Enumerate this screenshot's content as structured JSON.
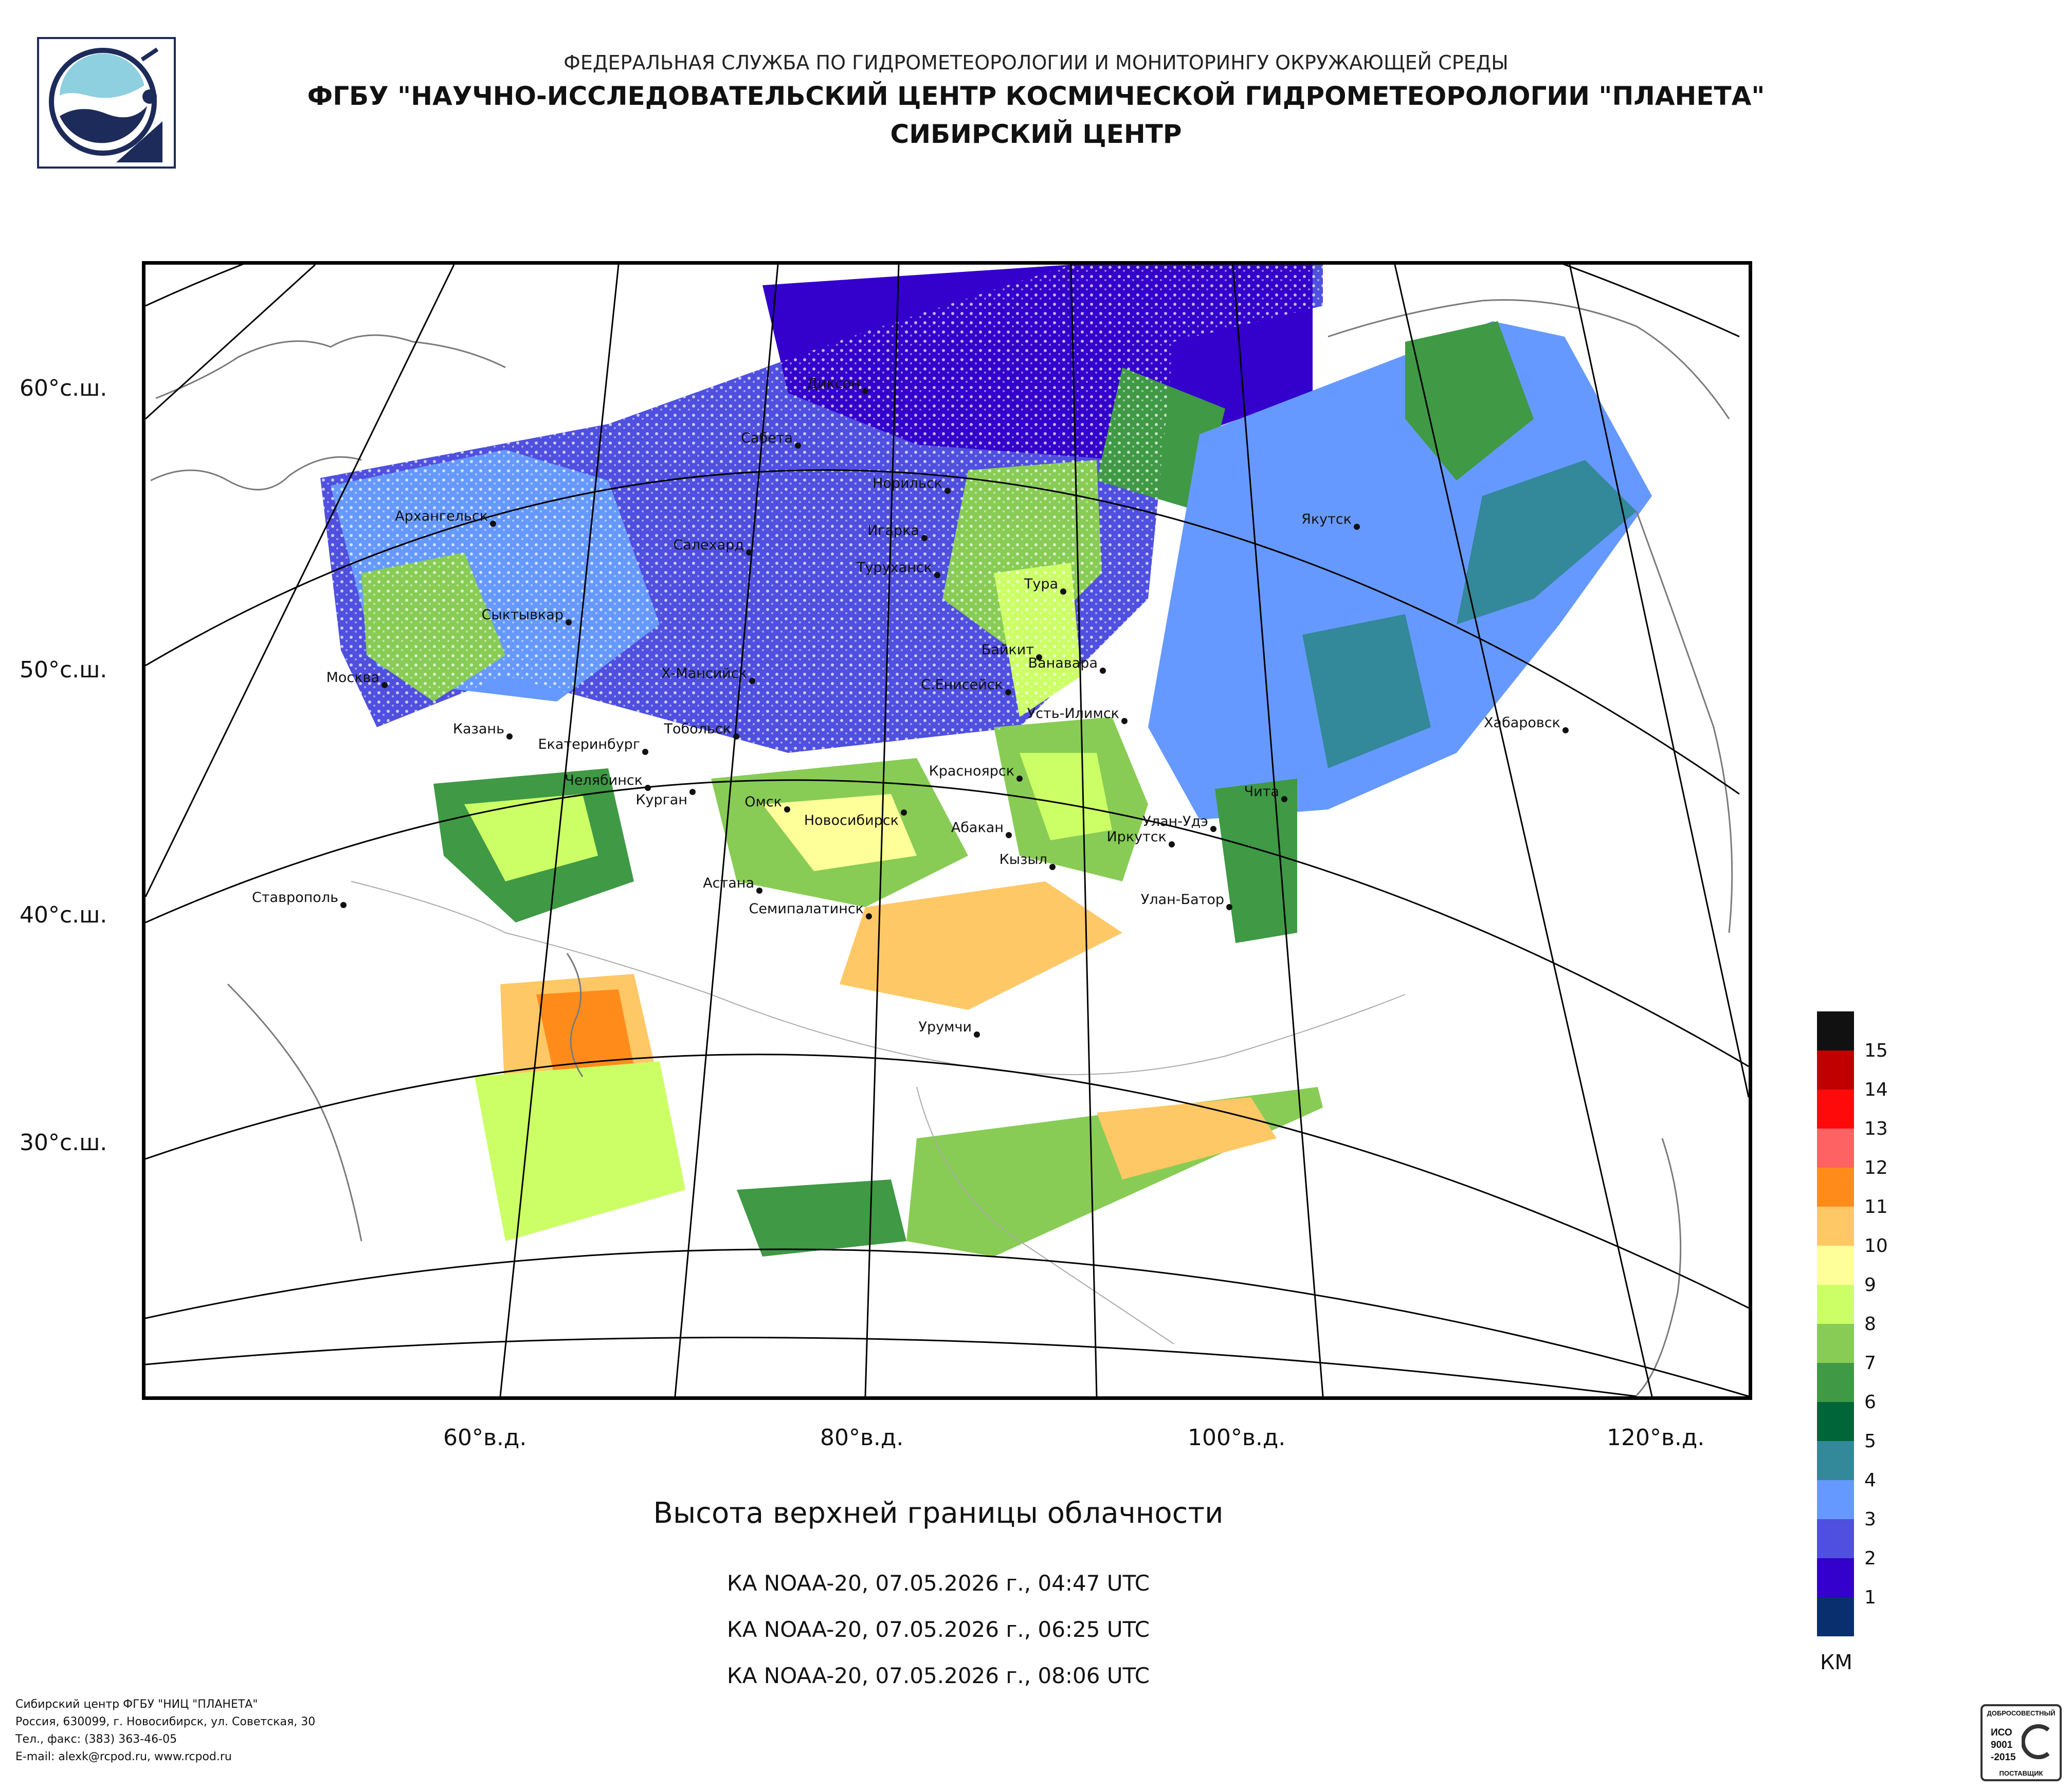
{
  "header": {
    "agency": "ФЕДЕРАЛЬНАЯ СЛУЖБА ПО ГИДРОМЕТЕОРОЛОГИИ И МОНИТОРИНГУ ОКРУЖАЮЩЕЙ СРЕДЫ",
    "center": "ФГБУ \"НАУЧНО-ИССЛЕДОВАТЕЛЬСКИЙ ЦЕНТР КОСМИЧЕСКОЙ ГИДРОМЕТЕОРОЛОГИИ \"ПЛАНЕТА\"",
    "branch": "СИБИРСКИЙ ЦЕНТР"
  },
  "map": {
    "lat_labels": [
      "60°с.ш.",
      "50°с.ш.",
      "40°с.ш.",
      "30°с.ш."
    ],
    "lon_labels": [
      "60°в.д.",
      "80°в.д.",
      "100°в.д.",
      "120°в.д."
    ],
    "cities": {
      "dikson": "Диксон",
      "sabeta": "Сабета",
      "norilsk": "Норильск",
      "arkhangelsk": "Архангельск",
      "salekhard": "Салехард",
      "igarka": "Игарка",
      "turukhansk": "Туруханск",
      "tura": "Тура",
      "yakutsk": "Якутск",
      "syktyvkar": "Сыктывкар",
      "baykit": "Байкит",
      "vanavara": "Ванавара",
      "moskva": "Москва",
      "khmansiysk": "Х-Мансийск",
      "s_eniseysk": "С.Енисейск",
      "ust_ilimsk": "Усть-Илимск",
      "khabarovsk": "Хабаровск",
      "kazan": "Казань",
      "tobolsk": "Тобольск",
      "ekaterinburg": "Екатеринбург",
      "chelyabinsk": "Челябинск",
      "kurgan": "Курган",
      "krasnoyarsk": "Красноярск",
      "chita": "Чита",
      "omsk": "Омск",
      "novosibirsk": "Новосибирск",
      "abakan": "Абакан",
      "ulan_ude": "Улан-Удэ",
      "irkutsk": "Иркутск",
      "kyzyl": "Кызыл",
      "astana": "Астана",
      "semipalatinsk": "Семипалатинск",
      "ulan_bator": "Улан-Батор",
      "stavropol": "Ставрополь",
      "urumchi": "Урумчи"
    }
  },
  "caption": {
    "title": "Высота верхней границы облачности",
    "passes": [
      "КА NOAA-20, 07.05.2026 г., 04:47 UTC",
      "КА NOAA-20, 07.05.2026 г., 06:25 UTC",
      "КА NOAA-20, 07.05.2026 г., 08:06 UTC"
    ]
  },
  "legend": {
    "unit": "КМ",
    "levels": [
      {
        "label": "15",
        "color": "#111111"
      },
      {
        "label": "14",
        "color": "#c00000"
      },
      {
        "label": "13",
        "color": "#ff0a0a"
      },
      {
        "label": "12",
        "color": "#ff6262"
      },
      {
        "label": "11",
        "color": "#ff8c1a"
      },
      {
        "label": "10",
        "color": "#ffc866"
      },
      {
        "label": "9",
        "color": "#ffff99"
      },
      {
        "label": "8",
        "color": "#ccff66"
      },
      {
        "label": "7",
        "color": "#88cc55"
      },
      {
        "label": "6",
        "color": "#3f9945"
      },
      {
        "label": "5",
        "color": "#00663a"
      },
      {
        "label": "4",
        "color": "#338899"
      },
      {
        "label": "3",
        "color": "#6699ff"
      },
      {
        "label": "2",
        "color": "#4f4fe0"
      },
      {
        "label": "1",
        "color": "#3300cc"
      },
      {
        "label": "",
        "color": "#0a2f6e"
      }
    ]
  },
  "footer": {
    "line1": "Сибирский центр ФГБУ \"НИЦ \"ПЛАНЕТА\"",
    "line2": "Россия, 630099, г. Новосибирск, ул. Советская, 30",
    "line3": "Тел., факс: (383) 363-46-05",
    "line4": "E-mail: alexk@rcpod.ru, www.rcpod.ru"
  },
  "iso_badge": {
    "top": "ДОБРОСОВЕСТНЫЙ",
    "mid": "ИСО 9001 -2015",
    "bottom": "ПОСТАВЩИК"
  }
}
